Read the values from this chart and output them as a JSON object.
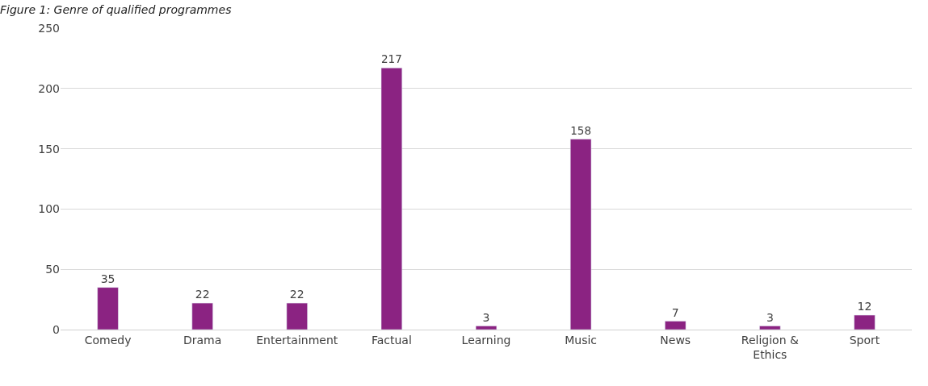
{
  "chart_data": {
    "type": "bar",
    "title": "Figure 1: Genre of qualified programmes",
    "categories": [
      "Comedy",
      "Drama",
      "Entertainment",
      "Factual",
      "Learning",
      "Music",
      "News",
      "Religion & Ethics",
      "Sport"
    ],
    "values": [
      35,
      22,
      22,
      217,
      3,
      158,
      7,
      3,
      12
    ],
    "color": "#8b2382",
    "ylim": [
      0,
      250
    ],
    "yticks": [
      0,
      50,
      100,
      150,
      200,
      250
    ],
    "grid": "y",
    "data_labels": true,
    "legend": false
  }
}
